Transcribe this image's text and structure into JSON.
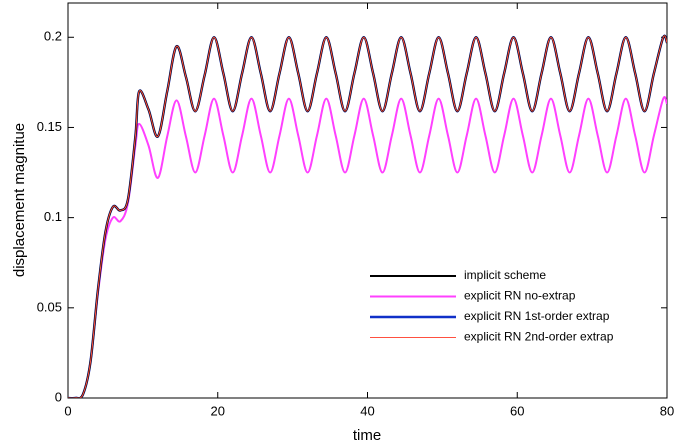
{
  "chart_data": {
    "type": "line",
    "x_label": "time",
    "y_label": "displacement magnitue",
    "x": [
      0,
      1,
      2,
      3,
      4,
      5,
      6,
      7,
      8,
      9,
      9.5,
      10.75,
      12,
      13.25,
      14.5,
      15.75,
      17,
      18.25,
      19.5,
      20.75,
      22,
      23.25,
      24.5,
      25.75,
      27,
      28.25,
      29.5,
      30.75,
      32,
      33.25,
      34.5,
      35.75,
      37,
      38.25,
      39.5,
      40.75,
      42,
      43.25,
      44.5,
      45.75,
      47,
      48.25,
      49.5,
      50.75,
      52,
      53.25,
      54.5,
      55.75,
      57,
      58.25,
      59.5,
      60.75,
      62,
      63.25,
      64.5,
      65.75,
      67,
      68.25,
      69.5,
      70.75,
      72,
      73.25,
      74.5,
      75.75,
      77,
      78.25,
      79.5,
      80
    ],
    "series": [
      {
        "name": "explicit RN no-extrap",
        "color": "#ff40ff",
        "width": 2,
        "values": [
          0,
          0,
          0.002,
          0.02,
          0.058,
          0.088,
          0.1,
          0.098,
          0.108,
          0.14,
          0.152,
          0.14,
          0.122,
          0.145,
          0.165,
          0.145,
          0.125,
          0.1455,
          0.166,
          0.1455,
          0.125,
          0.1455,
          0.166,
          0.1455,
          0.125,
          0.1455,
          0.166,
          0.1455,
          0.125,
          0.1455,
          0.166,
          0.1455,
          0.125,
          0.1455,
          0.166,
          0.1455,
          0.125,
          0.1455,
          0.166,
          0.1455,
          0.125,
          0.1455,
          0.166,
          0.1455,
          0.125,
          0.1455,
          0.166,
          0.1455,
          0.125,
          0.1455,
          0.166,
          0.1455,
          0.125,
          0.1455,
          0.166,
          0.1455,
          0.125,
          0.1455,
          0.166,
          0.1455,
          0.125,
          0.1455,
          0.166,
          0.1455,
          0.125,
          0.1455,
          0.166,
          0.163
        ]
      },
      {
        "name": "explicit RN 1st-order extrap",
        "color": "#1030c8",
        "width": 2.5,
        "values": [
          0,
          0,
          0.002,
          0.02,
          0.06,
          0.092,
          0.106,
          0.104,
          0.11,
          0.145,
          0.17,
          0.16,
          0.145,
          0.17,
          0.195,
          0.178,
          0.159,
          0.179,
          0.2,
          0.18,
          0.159,
          0.18,
          0.2,
          0.18,
          0.159,
          0.18,
          0.2,
          0.18,
          0.159,
          0.18,
          0.2,
          0.18,
          0.159,
          0.18,
          0.2,
          0.18,
          0.159,
          0.18,
          0.2,
          0.18,
          0.159,
          0.18,
          0.2,
          0.18,
          0.159,
          0.18,
          0.2,
          0.18,
          0.159,
          0.18,
          0.2,
          0.18,
          0.159,
          0.18,
          0.2,
          0.18,
          0.159,
          0.18,
          0.2,
          0.18,
          0.159,
          0.18,
          0.2,
          0.18,
          0.159,
          0.18,
          0.2,
          0.197
        ]
      },
      {
        "name": "implicit scheme",
        "color": "#000000",
        "width": 2,
        "values": [
          0,
          0,
          0.002,
          0.02,
          0.06,
          0.092,
          0.106,
          0.104,
          0.11,
          0.145,
          0.17,
          0.16,
          0.145,
          0.17,
          0.195,
          0.178,
          0.159,
          0.179,
          0.2,
          0.18,
          0.159,
          0.18,
          0.2,
          0.18,
          0.159,
          0.18,
          0.2,
          0.18,
          0.159,
          0.18,
          0.2,
          0.18,
          0.159,
          0.18,
          0.2,
          0.18,
          0.159,
          0.18,
          0.2,
          0.18,
          0.159,
          0.18,
          0.2,
          0.18,
          0.159,
          0.18,
          0.2,
          0.18,
          0.159,
          0.18,
          0.2,
          0.18,
          0.159,
          0.18,
          0.2,
          0.18,
          0.159,
          0.18,
          0.2,
          0.18,
          0.159,
          0.18,
          0.2,
          0.18,
          0.159,
          0.18,
          0.2,
          0.197
        ]
      },
      {
        "name": "explicit RN 2nd-order extrap",
        "color": "#ff5040",
        "width": 1,
        "values": [
          0,
          0,
          0.002,
          0.02,
          0.06,
          0.092,
          0.106,
          0.104,
          0.11,
          0.145,
          0.17,
          0.16,
          0.145,
          0.17,
          0.195,
          0.178,
          0.159,
          0.179,
          0.2,
          0.18,
          0.159,
          0.18,
          0.2,
          0.18,
          0.159,
          0.18,
          0.2,
          0.18,
          0.159,
          0.18,
          0.2,
          0.18,
          0.159,
          0.18,
          0.2,
          0.18,
          0.159,
          0.18,
          0.2,
          0.18,
          0.159,
          0.18,
          0.2,
          0.18,
          0.159,
          0.18,
          0.2,
          0.18,
          0.159,
          0.18,
          0.2,
          0.18,
          0.159,
          0.18,
          0.2,
          0.18,
          0.159,
          0.18,
          0.2,
          0.18,
          0.159,
          0.18,
          0.2,
          0.18,
          0.159,
          0.18,
          0.2,
          0.197
        ]
      }
    ],
    "legend_order": [
      2,
      0,
      1,
      3
    ],
    "xlim": [
      0,
      80
    ],
    "xticks": [
      0,
      20,
      40,
      60,
      80
    ],
    "ylim": [
      0,
      0.219
    ],
    "yticks": [
      0,
      0.05,
      0.1,
      0.15,
      0.2
    ]
  }
}
